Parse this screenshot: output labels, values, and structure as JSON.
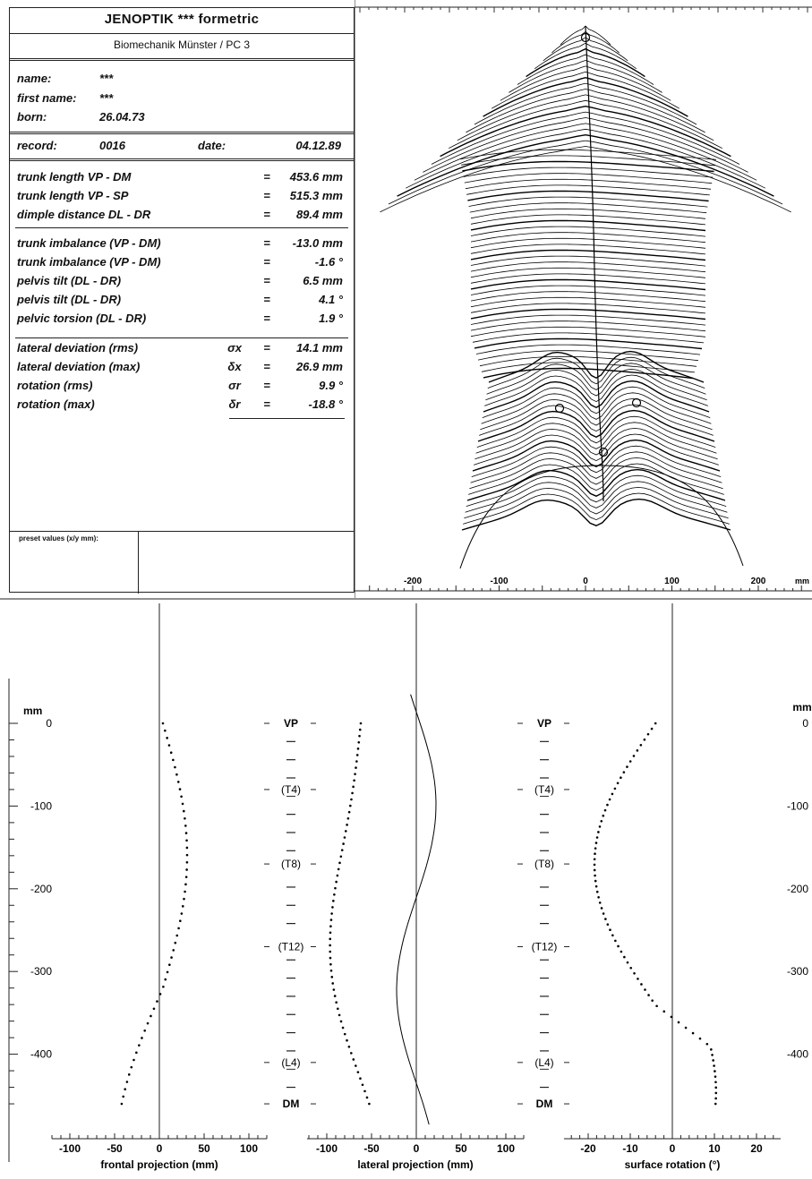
{
  "header": {
    "title": "JENOPTIK   ***   formetric",
    "subtitle": "Biomechanik Münster / PC 3"
  },
  "patient": {
    "name_label": "name:",
    "name_value": "***",
    "first_name_label": "first name:",
    "first_name_value": "***",
    "born_label": "born:",
    "born_value": "26.04.73"
  },
  "record": {
    "record_label": "record:",
    "record_value": "0016",
    "date_label": "date:",
    "date_value": "04.12.89"
  },
  "measurements": [
    {
      "label": "trunk length VP - DM",
      "symbol": "",
      "eq": "=",
      "value": "453.6 mm"
    },
    {
      "label": "trunk length VP - SP",
      "symbol": "",
      "eq": "=",
      "value": "515.3 mm"
    },
    {
      "label": "dimple distance DL - DR",
      "symbol": "",
      "eq": "=",
      "value": "89.4 mm"
    }
  ],
  "imbalance": [
    {
      "label": "trunk imbalance (VP - DM)",
      "symbol": "",
      "eq": "=",
      "value": "-13.0 mm"
    },
    {
      "label": "trunk imbalance (VP - DM)",
      "symbol": "",
      "eq": "=",
      "value": "-1.6 °"
    },
    {
      "label": "pelvis tilt (DL - DR)",
      "symbol": "",
      "eq": "=",
      "value": "6.5 mm"
    },
    {
      "label": "pelvis tilt (DL - DR)",
      "symbol": "",
      "eq": "=",
      "value": "4.1 °"
    },
    {
      "label": "pelvic torsion (DL - DR)",
      "symbol": "",
      "eq": "=",
      "value": "1.9 °"
    }
  ],
  "deviation": [
    {
      "label": "lateral deviation (rms)",
      "symbol": "σx",
      "eq": "=",
      "value": "14.1 mm"
    },
    {
      "label": "lateral deviation (max)",
      "symbol": "δx",
      "eq": "=",
      "value": "26.9 mm"
    },
    {
      "label": "rotation (rms)",
      "symbol": "σr",
      "eq": "=",
      "value": "9.9 °"
    },
    {
      "label": "rotation (max)",
      "symbol": "δr",
      "eq": "=",
      "value": "-18.8 °"
    }
  ],
  "preset_label": "preset values (x/y mm):",
  "topography": {
    "x_ticks": [
      "-200",
      "-100",
      "0",
      "100",
      "200"
    ],
    "x_unit": "mm"
  },
  "profiles": {
    "y_unit": "mm",
    "y_ticks": [
      "0",
      "-100",
      "-200",
      "-300",
      "-400"
    ],
    "vertebra_labels": [
      "VP",
      "(T4)",
      "(T8)",
      "(T12)",
      "(L4)",
      "DM"
    ],
    "frontal": {
      "xlabel": "frontal projection (mm)",
      "x_ticks": [
        "-100",
        "-50",
        "0",
        "50",
        "100"
      ]
    },
    "lateral": {
      "xlabel": "lateral projection (mm)",
      "x_ticks": [
        "-100",
        "-50",
        "0",
        "50",
        "100"
      ]
    },
    "rotation": {
      "xlabel": "surface rotation (°)",
      "x_ticks": [
        "-20",
        "-10",
        "0",
        "10",
        "20"
      ]
    }
  }
}
